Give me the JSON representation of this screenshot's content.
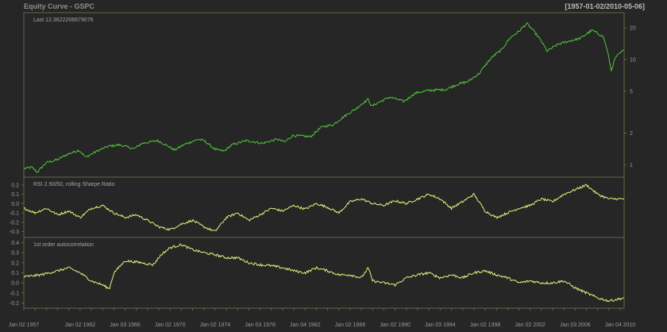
{
  "header": {
    "title": "Equity Curve - GSPC",
    "date_range": "[1957-01-02/2010-05-06]"
  },
  "colors": {
    "background": "#262626",
    "frame": "#5f6a45",
    "equity_line": "#4fc83a",
    "indicator_line": "#e6ef7a",
    "text": "#9a9a9a"
  },
  "chart_data": [
    {
      "type": "line",
      "title": "",
      "legend_label": "Last 12.3622206679076",
      "y_scale": "log",
      "y_ticks": [
        1,
        2,
        5,
        10,
        20
      ],
      "ylim": [
        0.82,
        26
      ],
      "x_ticks": [
        "Jan 02 1957",
        "Jan 02 1962",
        "Jan 03 1966",
        "Jan 02 1970",
        "Jan 02 1974",
        "Jan 03 1978",
        "Jan 04 1982",
        "Jan 02 1986",
        "Jan 02 1990",
        "Jan 03 1994",
        "Jan 02 1998",
        "Jan 02 2002",
        "Jan 03 2006",
        "Jan 04 2010"
      ],
      "xlim": [
        1957.0,
        2010.35
      ],
      "series": [
        {
          "x": [
            1957.0,
            1957.7,
            1958.2,
            1959.0,
            1960.0,
            1960.8,
            1961.9,
            1962.5,
            1963.5,
            1964.5,
            1965.5,
            1966.8,
            1967.5,
            1968.9,
            1970.4,
            1971.2,
            1972.5,
            1973.0,
            1974.0,
            1974.8,
            1975.5,
            1976.8,
            1978.2,
            1979.5,
            1980.2,
            1980.9,
            1982.5,
            1983.5,
            1984.5,
            1985.5,
            1986.5,
            1987.6,
            1987.9,
            1989.5,
            1990.8,
            1991.8,
            1993.0,
            1994.5,
            1995.5,
            1996.5,
            1997.5,
            1998.6,
            1999.5,
            2000.2,
            2001.0,
            2001.7,
            2002.8,
            2003.5,
            2004.5,
            2005.5,
            2006.5,
            2007.5,
            2007.9,
            2008.5,
            2009.2,
            2009.6,
            2010.35
          ],
          "values": [
            0.92,
            0.95,
            0.85,
            1.05,
            1.12,
            1.25,
            1.38,
            1.18,
            1.35,
            1.5,
            1.55,
            1.42,
            1.6,
            1.7,
            1.38,
            1.55,
            1.75,
            1.7,
            1.4,
            1.35,
            1.55,
            1.7,
            1.6,
            1.75,
            1.65,
            1.9,
            1.85,
            2.3,
            2.4,
            2.9,
            3.4,
            4.2,
            3.6,
            4.4,
            4.0,
            4.8,
            5.1,
            5.2,
            5.8,
            6.2,
            7.4,
            10.5,
            12.5,
            16.0,
            18.5,
            22.0,
            16.0,
            12.0,
            14.0,
            15.0,
            16.0,
            19.0,
            18.0,
            16.5,
            7.8,
            10.5,
            12.36
          ]
        }
      ]
    },
    {
      "type": "line",
      "title": "",
      "legend_label": "RSI 2.50/50, rolling Sharpe Ratio",
      "y_ticks": [
        -0.3,
        -0.2,
        -0.1,
        0.0,
        0.1,
        0.2
      ],
      "ylim": [
        -0.33,
        0.25
      ],
      "series": [
        {
          "x": [
            1957.0,
            1958.0,
            1959.0,
            1960.0,
            1961.0,
            1962.0,
            1963.0,
            1964.0,
            1965.0,
            1966.0,
            1967.0,
            1968.0,
            1969.0,
            1970.0,
            1971.0,
            1972.0,
            1973.0,
            1974.0,
            1975.0,
            1976.0,
            1977.0,
            1978.0,
            1979.0,
            1980.0,
            1981.0,
            1982.0,
            1983.0,
            1984.0,
            1985.0,
            1986.0,
            1987.0,
            1988.0,
            1989.0,
            1990.0,
            1991.0,
            1992.0,
            1993.0,
            1994.0,
            1995.0,
            1996.0,
            1997.0,
            1998.0,
            1999.0,
            2000.0,
            2001.0,
            2002.0,
            2003.0,
            2004.0,
            2005.0,
            2006.0,
            2007.0,
            2008.0,
            2009.0,
            2010.35
          ],
          "values": [
            -0.05,
            -0.1,
            -0.05,
            -0.12,
            -0.08,
            -0.15,
            -0.05,
            -0.02,
            -0.1,
            -0.15,
            -0.12,
            -0.18,
            -0.25,
            -0.28,
            -0.22,
            -0.18,
            -0.25,
            -0.3,
            -0.15,
            -0.1,
            -0.18,
            -0.12,
            -0.05,
            -0.08,
            -0.02,
            -0.06,
            0.0,
            -0.04,
            -0.1,
            0.02,
            0.05,
            0.0,
            -0.02,
            0.03,
            0.0,
            0.05,
            0.1,
            0.05,
            -0.05,
            0.02,
            0.1,
            -0.08,
            -0.15,
            -0.1,
            -0.05,
            -0.02,
            0.05,
            0.02,
            0.1,
            0.15,
            0.2,
            0.1,
            0.05,
            0.05
          ]
        }
      ]
    },
    {
      "type": "line",
      "title": "",
      "legend_label": "1st order autocorrelation",
      "y_ticks": [
        -0.2,
        -0.1,
        0.0,
        0.1,
        0.2,
        0.3,
        0.4
      ],
      "ylim": [
        -0.22,
        0.42
      ],
      "series": [
        {
          "x": [
            1957.0,
            1958.5,
            1960.0,
            1961.0,
            1962.0,
            1963.0,
            1964.0,
            1964.6,
            1965.0,
            1966.0,
            1967.5,
            1968.5,
            1969.2,
            1970.0,
            1971.0,
            1972.0,
            1973.0,
            1974.0,
            1975.0,
            1976.0,
            1977.0,
            1978.0,
            1979.0,
            1980.0,
            1981.0,
            1982.0,
            1983.0,
            1984.0,
            1985.0,
            1986.0,
            1987.0,
            1987.6,
            1988.0,
            1989.0,
            1990.0,
            1991.0,
            1992.0,
            1993.0,
            1994.0,
            1995.0,
            1996.0,
            1997.0,
            1998.0,
            1999.0,
            2000.0,
            2001.0,
            2002.0,
            2003.0,
            2004.0,
            2005.0,
            2006.0,
            2007.0,
            2008.0,
            2009.0,
            2010.35
          ],
          "values": [
            0.06,
            0.08,
            0.12,
            0.15,
            0.1,
            0.02,
            -0.02,
            -0.06,
            0.1,
            0.22,
            0.2,
            0.18,
            0.28,
            0.35,
            0.38,
            0.33,
            0.3,
            0.28,
            0.25,
            0.25,
            0.2,
            0.18,
            0.17,
            0.15,
            0.12,
            0.1,
            0.15,
            0.12,
            0.08,
            0.08,
            0.05,
            0.15,
            0.02,
            0.0,
            -0.02,
            0.05,
            0.08,
            0.1,
            0.05,
            0.08,
            0.05,
            0.1,
            0.12,
            0.08,
            0.05,
            0.0,
            0.02,
            0.0,
            0.0,
            0.02,
            -0.05,
            -0.1,
            -0.15,
            -0.18,
            -0.15
          ]
        }
      ]
    }
  ]
}
